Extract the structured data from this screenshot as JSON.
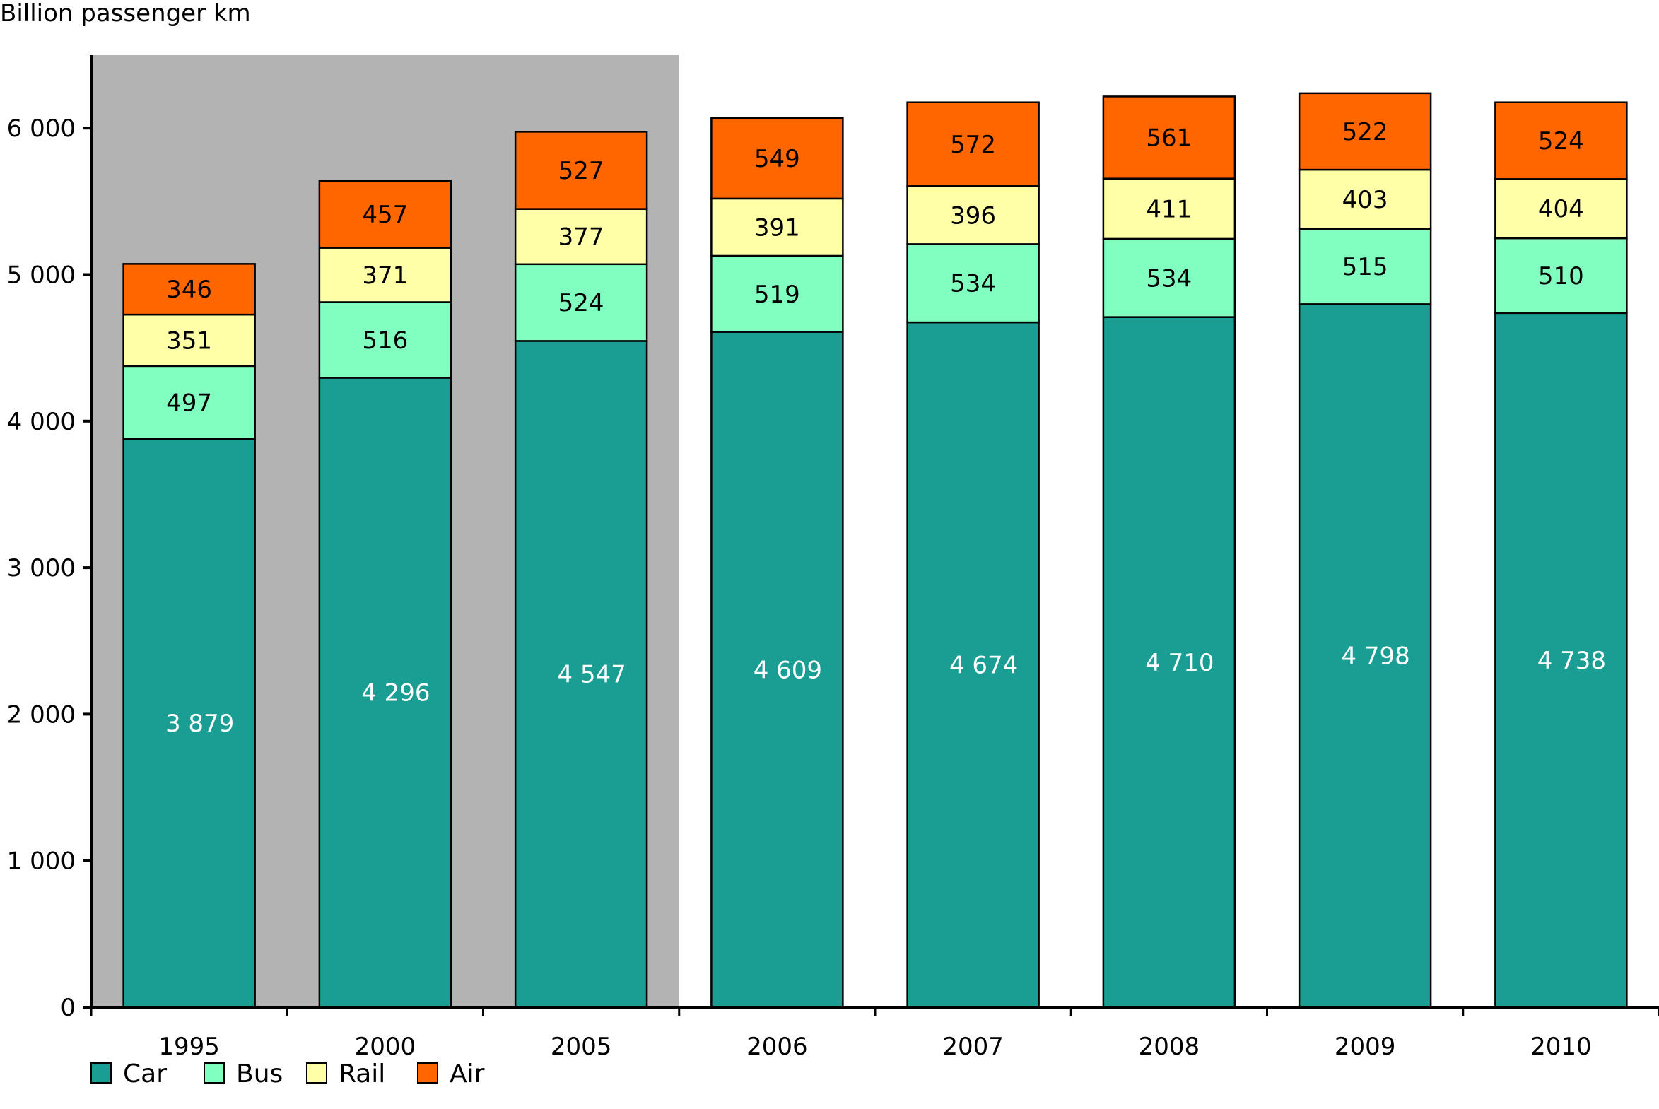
{
  "chart_data": {
    "type": "bar",
    "stacked": true,
    "title": "",
    "ylabel": "Billion passenger km",
    "xlabel": "",
    "ylim": [
      0,
      6500
    ],
    "yticks": [
      0,
      1000,
      2000,
      3000,
      4000,
      5000,
      6000
    ],
    "ytick_labels": [
      "0",
      "1 000",
      "2 000",
      "3 000",
      "4 000",
      "5 000",
      "6 000"
    ],
    "categories": [
      "1995",
      "2000",
      "2005",
      "2006",
      "2007",
      "2008",
      "2009",
      "2010"
    ],
    "shaded_categories": [
      "1995",
      "2000",
      "2005"
    ],
    "shade_color": "#b3b3b3",
    "grid": false,
    "legend_position": "bottom-left",
    "series": [
      {
        "name": "Car",
        "color": "#1a9e94",
        "label_color": "#ffffff",
        "values": [
          3879,
          4296,
          4547,
          4609,
          4674,
          4710,
          4798,
          4738
        ],
        "labels": [
          "3 879",
          "4 296",
          "4 547",
          "4 609",
          "4 674",
          "4 710",
          "4 798",
          "4 738"
        ]
      },
      {
        "name": "Bus",
        "color": "#80ffc0",
        "label_color": "#000000",
        "values": [
          497,
          516,
          524,
          519,
          534,
          534,
          515,
          510
        ],
        "labels": [
          "497",
          "516",
          "524",
          "519",
          "534",
          "534",
          "515",
          "510"
        ]
      },
      {
        "name": "Rail",
        "color": "#ffffa8",
        "label_color": "#000000",
        "values": [
          351,
          371,
          377,
          391,
          396,
          411,
          403,
          404
        ],
        "labels": [
          "351",
          "371",
          "377",
          "391",
          "396",
          "411",
          "403",
          "404"
        ]
      },
      {
        "name": "Air",
        "color": "#ff6600",
        "label_color": "#000000",
        "values": [
          346,
          457,
          527,
          549,
          572,
          561,
          522,
          524
        ],
        "labels": [
          "346",
          "457",
          "527",
          "549",
          "572",
          "561",
          "522",
          "524"
        ]
      }
    ]
  }
}
